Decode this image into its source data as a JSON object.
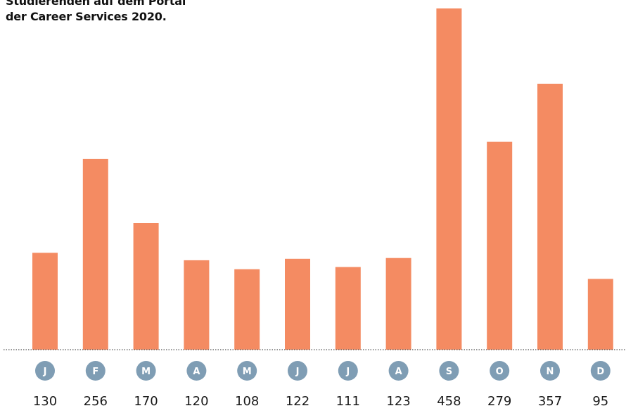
{
  "chart_data": {
    "type": "bar",
    "title_lines": [
      "Studierenden auf dem Portal",
      "der Career Services 2020."
    ],
    "categories": [
      "J",
      "F",
      "M",
      "A",
      "M",
      "J",
      "J",
      "A",
      "S",
      "O",
      "N",
      "D"
    ],
    "values": [
      130,
      256,
      170,
      120,
      108,
      122,
      111,
      123,
      458,
      279,
      357,
      95
    ],
    "xlabel": "",
    "ylabel": "",
    "ylim": [
      0,
      458
    ],
    "grid": false,
    "legend": "none",
    "colors": {
      "bar": "#f48b62",
      "month_circle": "#7f9db4",
      "baseline": "#555555"
    }
  }
}
